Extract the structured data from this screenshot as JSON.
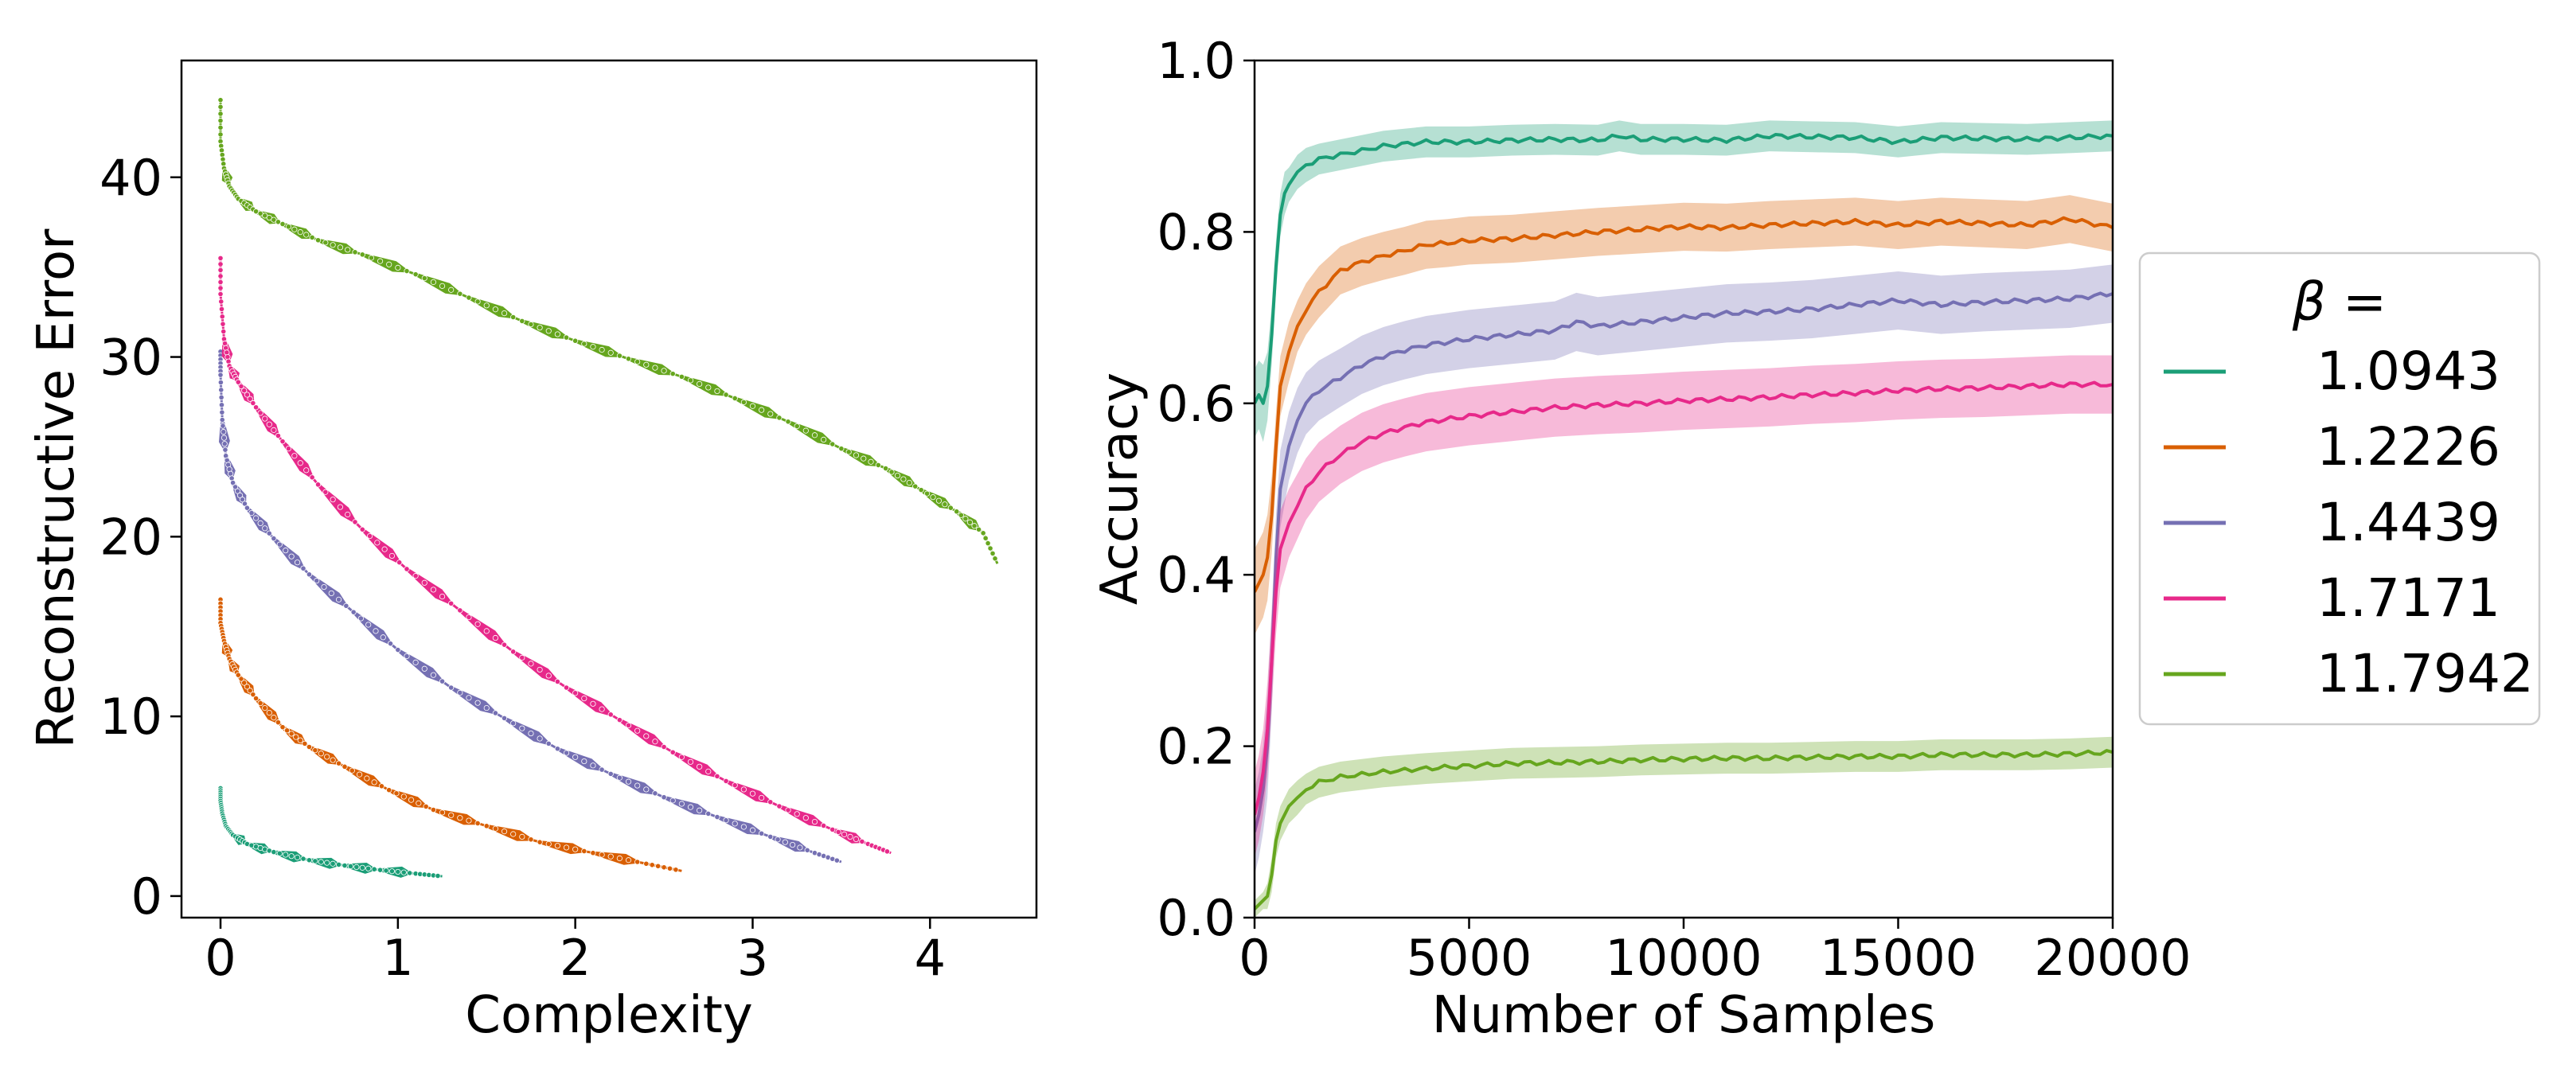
{
  "chart_data": [
    {
      "type": "line",
      "xlabel": "Complexity",
      "ylabel": "Reconstructive Error",
      "xlim": [
        -0.22,
        4.6
      ],
      "ylim": [
        -1.2,
        46.5
      ],
      "xticks": [
        "0",
        "1",
        "2",
        "3",
        "4"
      ],
      "xtick_values": [
        0,
        1,
        2,
        3,
        4
      ],
      "yticks": [
        "0",
        "10",
        "20",
        "30",
        "40"
      ],
      "ytick_values": [
        0,
        10,
        20,
        30,
        40
      ],
      "grid": false,
      "series": [
        {
          "name": "1.0943",
          "color": "#1b9e77",
          "x": [
            0,
            0,
            0.01,
            0.03,
            0.07,
            0.15,
            0.3,
            0.5,
            0.7,
            0.9,
            1.1,
            1.25
          ],
          "y": [
            6.0,
            5.3,
            4.6,
            3.9,
            3.4,
            2.9,
            2.45,
            2.0,
            1.7,
            1.45,
            1.25,
            1.1
          ]
        },
        {
          "name": "1.2226",
          "color": "#d95f02",
          "x": [
            0,
            0,
            0.02,
            0.05,
            0.1,
            0.2,
            0.35,
            0.5,
            0.7,
            0.95,
            1.2,
            1.5,
            1.8,
            2.1,
            2.4,
            2.6
          ],
          "y": [
            16.5,
            15.2,
            14.2,
            13.2,
            12.3,
            11.0,
            9.4,
            8.3,
            7.2,
            5.9,
            4.8,
            3.9,
            3.0,
            2.4,
            1.8,
            1.4
          ]
        },
        {
          "name": "1.4439",
          "color": "#7570b3",
          "x": [
            0,
            0,
            0.01,
            0.03,
            0.07,
            0.15,
            0.3,
            0.5,
            0.75,
            1.0,
            1.3,
            1.6,
            1.9,
            2.2,
            2.5,
            2.8,
            3.1,
            3.35,
            3.5
          ],
          "y": [
            30.3,
            29.0,
            26.5,
            24.5,
            23.0,
            21.6,
            19.9,
            17.9,
            15.8,
            13.7,
            11.6,
            9.9,
            8.2,
            6.8,
            5.5,
            4.4,
            3.3,
            2.4,
            1.9
          ]
        },
        {
          "name": "1.7171",
          "color": "#e7298a",
          "x": [
            0,
            0,
            0.02,
            0.05,
            0.1,
            0.2,
            0.35,
            0.55,
            0.8,
            1.05,
            1.35,
            1.65,
            1.95,
            2.25,
            2.55,
            2.85,
            3.15,
            3.45,
            3.65,
            3.78
          ],
          "y": [
            35.5,
            33.5,
            31.0,
            29.5,
            28.6,
            27.2,
            25.3,
            22.9,
            20.4,
            18.2,
            15.9,
            13.6,
            11.6,
            9.8,
            8.0,
            6.4,
            5.0,
            3.7,
            2.9,
            2.4
          ]
        },
        {
          "name": "11.7942",
          "color": "#66a61e",
          "x": [
            0,
            0,
            0.02,
            0.05,
            0.1,
            0.2,
            0.35,
            0.55,
            0.8,
            1.1,
            1.4,
            1.7,
            2.0,
            2.3,
            2.6,
            2.9,
            3.2,
            3.5,
            3.75,
            3.95,
            4.15,
            4.3,
            4.38
          ],
          "y": [
            44.3,
            42.0,
            40.5,
            39.5,
            38.8,
            38.1,
            37.4,
            36.5,
            35.7,
            34.6,
            33.3,
            32.0,
            30.9,
            29.9,
            28.9,
            27.7,
            26.4,
            24.9,
            23.8,
            22.6,
            21.4,
            20.2,
            18.5
          ]
        }
      ]
    },
    {
      "type": "line",
      "xlabel": "Number of Samples",
      "ylabel": "Accuracy",
      "xlim": [
        0,
        20000
      ],
      "ylim": [
        0,
        1.0
      ],
      "xticks": [
        "0",
        "5000",
        "10000",
        "15000",
        "20000"
      ],
      "xtick_values": [
        0,
        5000,
        10000,
        15000,
        20000
      ],
      "yticks": [
        "0.0",
        "0.2",
        "0.4",
        "0.6",
        "0.8",
        "1.0"
      ],
      "ytick_values": [
        0,
        0.2,
        0.4,
        0.6,
        0.8,
        1.0
      ],
      "grid": false,
      "series": [
        {
          "name": "1.0943",
          "color": "#1b9e77",
          "x": [
            0,
            100,
            200,
            300,
            400,
            500,
            600,
            700,
            800,
            1000,
            1200,
            1500,
            2000,
            2500,
            3000,
            4000,
            5000,
            6000,
            7000,
            8000,
            8500,
            9000,
            10000,
            11000,
            12000,
            13000,
            14000,
            15000,
            16000,
            17000,
            18000,
            19000,
            20000
          ],
          "y": [
            0.6,
            0.61,
            0.6,
            0.62,
            0.68,
            0.76,
            0.82,
            0.845,
            0.855,
            0.87,
            0.878,
            0.885,
            0.89,
            0.895,
            0.9,
            0.905,
            0.905,
            0.907,
            0.908,
            0.907,
            0.912,
            0.908,
            0.908,
            0.907,
            0.912,
            0.911,
            0.91,
            0.905,
            0.91,
            0.909,
            0.908,
            0.91,
            0.912
          ],
          "band": [
            0.04,
            0.04,
            0.045,
            0.04,
            0.035,
            0.03,
            0.025,
            0.025,
            0.02,
            0.02,
            0.02,
            0.018,
            0.018,
            0.018,
            0.018,
            0.018,
            0.018,
            0.018,
            0.018,
            0.018,
            0.018,
            0.018,
            0.018,
            0.018,
            0.018,
            0.018,
            0.018,
            0.018,
            0.018,
            0.018,
            0.018,
            0.018,
            0.018
          ]
        },
        {
          "name": "1.2226",
          "color": "#d95f02",
          "x": [
            0,
            100,
            200,
            300,
            400,
            500,
            600,
            800,
            1000,
            1200,
            1500,
            2000,
            2500,
            3000,
            3500,
            4000,
            4500,
            5000,
            6000,
            7000,
            8000,
            9000,
            10000,
            11000,
            12000,
            13000,
            14000,
            15000,
            16000,
            17000,
            18000,
            19000,
            20000
          ],
          "y": [
            0.38,
            0.39,
            0.4,
            0.42,
            0.47,
            0.55,
            0.62,
            0.66,
            0.69,
            0.71,
            0.73,
            0.755,
            0.765,
            0.772,
            0.778,
            0.785,
            0.787,
            0.79,
            0.792,
            0.796,
            0.8,
            0.803,
            0.806,
            0.805,
            0.808,
            0.81,
            0.812,
            0.808,
            0.812,
            0.81,
            0.808,
            0.815,
            0.805
          ],
          "band": [
            0.05,
            0.05,
            0.05,
            0.05,
            0.045,
            0.04,
            0.035,
            0.035,
            0.03,
            0.03,
            0.03,
            0.028,
            0.028,
            0.028,
            0.028,
            0.028,
            0.028,
            0.028,
            0.028,
            0.028,
            0.028,
            0.028,
            0.028,
            0.028,
            0.028,
            0.028,
            0.028,
            0.028,
            0.028,
            0.028,
            0.028,
            0.028,
            0.028
          ]
        },
        {
          "name": "1.4439",
          "color": "#7570b3",
          "x": [
            0,
            100,
            200,
            300,
            400,
            500,
            600,
            800,
            1000,
            1200,
            1500,
            2000,
            2500,
            3000,
            3500,
            4000,
            5000,
            6000,
            7000,
            7500,
            8000,
            9000,
            10000,
            11000,
            12000,
            13000,
            14000,
            15000,
            16000,
            17000,
            18000,
            19000,
            20000
          ],
          "y": [
            0.1,
            0.12,
            0.15,
            0.2,
            0.3,
            0.42,
            0.5,
            0.55,
            0.58,
            0.6,
            0.615,
            0.63,
            0.645,
            0.655,
            0.662,
            0.668,
            0.675,
            0.68,
            0.685,
            0.695,
            0.69,
            0.695,
            0.7,
            0.705,
            0.707,
            0.71,
            0.715,
            0.72,
            0.715,
            0.718,
            0.72,
            0.722,
            0.728
          ],
          "band": [
            0.05,
            0.05,
            0.05,
            0.06,
            0.06,
            0.05,
            0.045,
            0.04,
            0.038,
            0.036,
            0.035,
            0.034,
            0.034,
            0.034,
            0.034,
            0.034,
            0.034,
            0.034,
            0.034,
            0.034,
            0.034,
            0.034,
            0.034,
            0.034,
            0.034,
            0.034,
            0.034,
            0.034,
            0.034,
            0.034,
            0.034,
            0.034,
            0.034
          ]
        },
        {
          "name": "1.7171",
          "color": "#e7298a",
          "x": [
            0,
            100,
            200,
            300,
            400,
            500,
            600,
            800,
            1000,
            1200,
            1500,
            2000,
            2500,
            3000,
            3500,
            4000,
            5000,
            6000,
            7000,
            8000,
            9000,
            10000,
            11000,
            12000,
            13000,
            14000,
            15000,
            16000,
            17000,
            18000,
            19000,
            20000
          ],
          "y": [
            0.12,
            0.14,
            0.17,
            0.22,
            0.3,
            0.38,
            0.43,
            0.46,
            0.48,
            0.5,
            0.52,
            0.54,
            0.555,
            0.565,
            0.572,
            0.578,
            0.585,
            0.59,
            0.595,
            0.598,
            0.6,
            0.603,
            0.605,
            0.607,
            0.61,
            0.612,
            0.615,
            0.617,
            0.618,
            0.62,
            0.622,
            0.622
          ],
          "band": [
            0.05,
            0.05,
            0.05,
            0.055,
            0.055,
            0.05,
            0.045,
            0.04,
            0.038,
            0.036,
            0.035,
            0.034,
            0.034,
            0.034,
            0.034,
            0.034,
            0.034,
            0.034,
            0.034,
            0.034,
            0.034,
            0.034,
            0.034,
            0.034,
            0.034,
            0.034,
            0.034,
            0.034,
            0.034,
            0.034,
            0.034,
            0.034
          ]
        },
        {
          "name": "11.7942",
          "color": "#66a61e",
          "x": [
            0,
            100,
            200,
            300,
            400,
            500,
            600,
            800,
            1000,
            1200,
            1500,
            2000,
            2500,
            3000,
            3500,
            4000,
            5000,
            6000,
            7000,
            8000,
            9000,
            10000,
            11000,
            12000,
            13000,
            14000,
            15000,
            16000,
            17000,
            18000,
            19000,
            20000
          ],
          "y": [
            0.01,
            0.015,
            0.02,
            0.025,
            0.05,
            0.09,
            0.11,
            0.13,
            0.14,
            0.15,
            0.158,
            0.164,
            0.167,
            0.17,
            0.172,
            0.174,
            0.177,
            0.18,
            0.181,
            0.182,
            0.184,
            0.185,
            0.186,
            0.186,
            0.187,
            0.188,
            0.188,
            0.19,
            0.19,
            0.19,
            0.191,
            0.193
          ],
          "band": [
            0.01,
            0.01,
            0.01,
            0.015,
            0.02,
            0.02,
            0.02,
            0.02,
            0.02,
            0.018,
            0.018,
            0.018,
            0.018,
            0.018,
            0.018,
            0.018,
            0.018,
            0.018,
            0.018,
            0.018,
            0.018,
            0.018,
            0.018,
            0.018,
            0.018,
            0.018,
            0.018,
            0.018,
            0.018,
            0.018,
            0.018,
            0.018
          ]
        }
      ]
    }
  ],
  "legend": {
    "title": "β =",
    "placement": "right",
    "entries": [
      {
        "label": "1.0943",
        "color": "#1b9e77"
      },
      {
        "label": "1.2226",
        "color": "#d95f02"
      },
      {
        "label": "1.4439",
        "color": "#7570b3"
      },
      {
        "label": "1.7171",
        "color": "#e7298a"
      },
      {
        "label": "11.7942",
        "color": "#66a61e"
      }
    ]
  }
}
